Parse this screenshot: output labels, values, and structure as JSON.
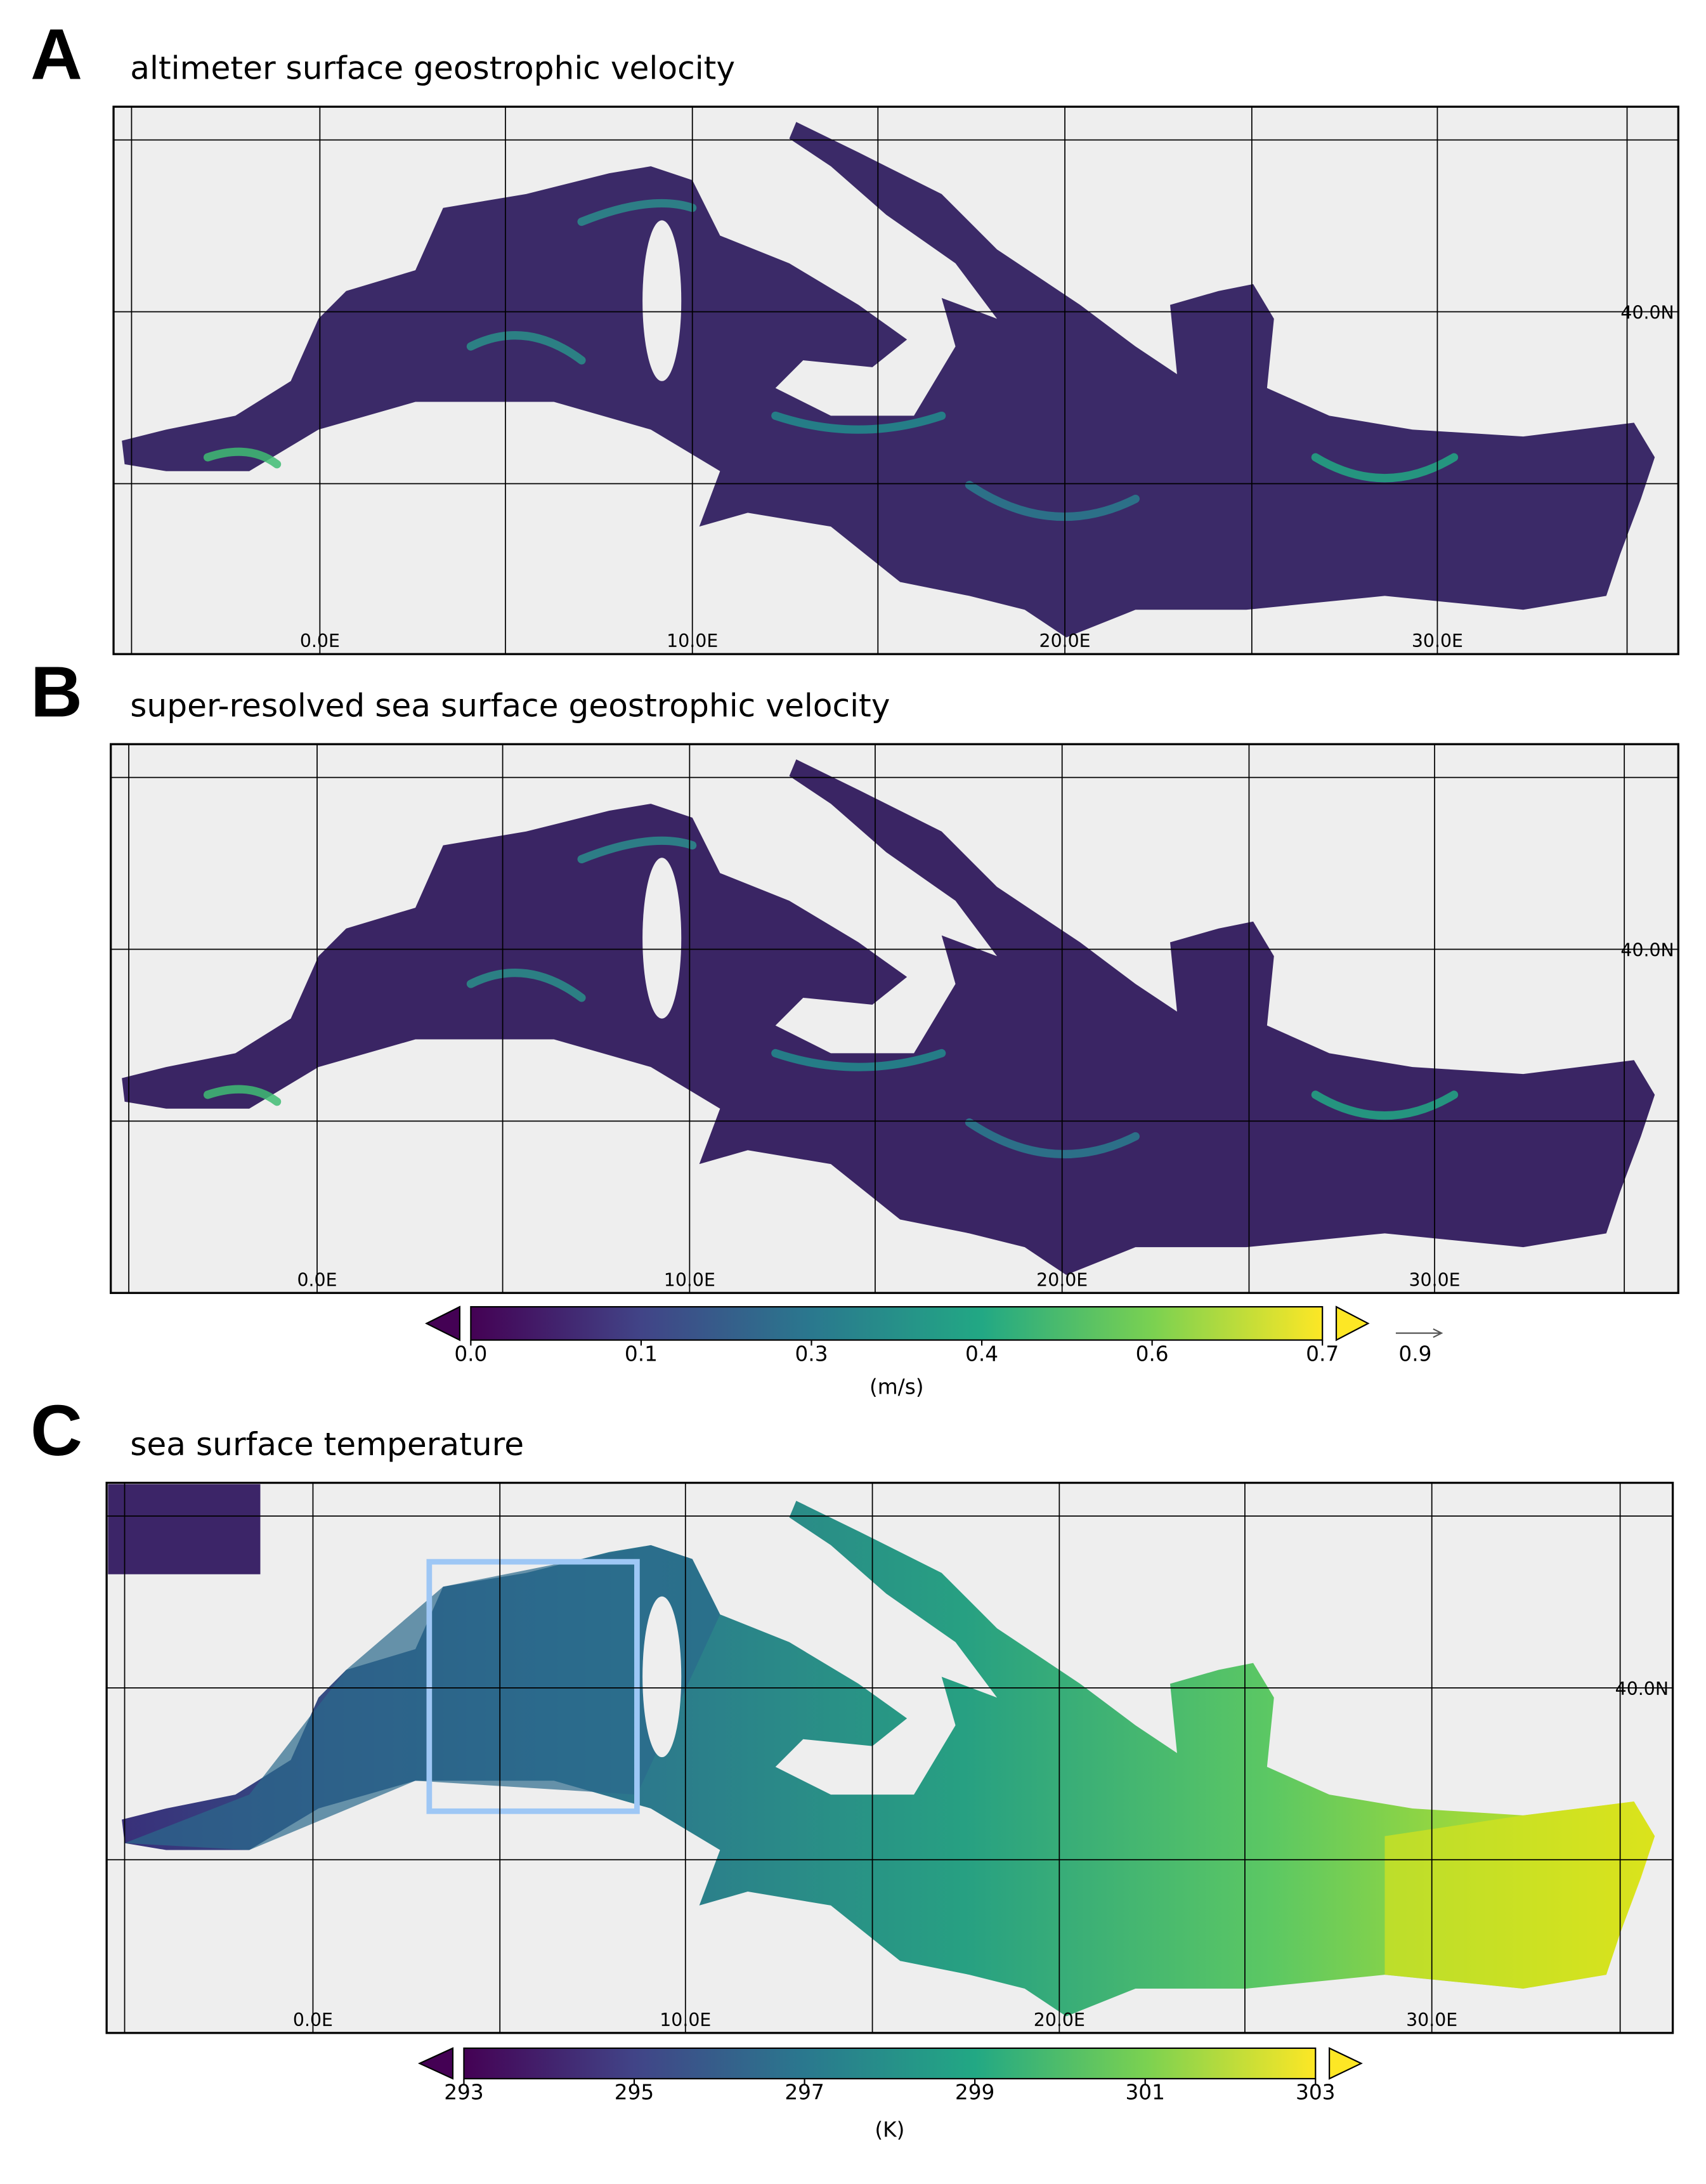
{
  "panels": [
    {
      "letter": "A",
      "title": "altimeter surface geostrophic velocity",
      "lon_labels": [
        "0.0E",
        "10.0E",
        "20.0E",
        "30.0E"
      ],
      "lat_label": "40.0N"
    },
    {
      "letter": "B",
      "title": "super-resolved  sea surface geostrophic velocity",
      "lon_labels": [
        "0.0E",
        "10.0E",
        "20.0E",
        "30.0E"
      ],
      "lat_label": "40.0N"
    },
    {
      "letter": "C",
      "title": "sea surface temperature",
      "lon_labels": [
        "0.0E",
        "10.0E",
        "20.0E",
        "30.0E"
      ],
      "lat_label": "40.0N"
    }
  ],
  "colorbars": [
    {
      "ticks": [
        "0.0",
        "0.1",
        "0.3",
        "0.4",
        "0.6",
        "0.7"
      ],
      "arrow_label": "0.9",
      "unit": "(m/s)"
    },
    {
      "ticks": [
        "293",
        "295",
        "297",
        "299",
        "301",
        "303"
      ],
      "unit": "(K)"
    }
  ]
}
